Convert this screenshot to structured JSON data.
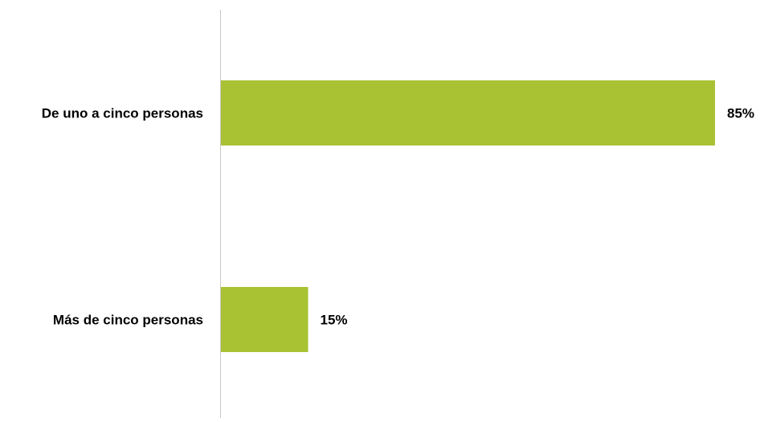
{
  "chart_data": {
    "type": "bar",
    "orientation": "horizontal",
    "categories": [
      "De uno a cinco personas",
      "Más de cinco personas"
    ],
    "values": [
      85,
      15
    ],
    "value_labels": [
      "85%",
      "15%"
    ],
    "unit": "%",
    "xlim": [
      0,
      85
    ],
    "bar_color": "#a8c234",
    "axis_color": "#c8c8c8",
    "grid": false,
    "legend": "none"
  }
}
